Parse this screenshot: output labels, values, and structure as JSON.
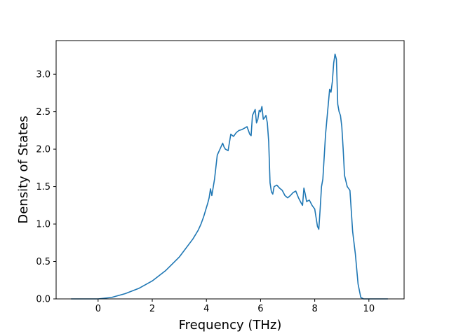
{
  "chart_data": {
    "type": "line",
    "title": "",
    "xlabel": "Frequency (THz)",
    "ylabel": "Density of States",
    "xlim": [
      -1.55,
      11.3
    ],
    "ylim": [
      0.0,
      3.45
    ],
    "xticks": [
      "0",
      "2",
      "4",
      "6",
      "8",
      "10"
    ],
    "xtick_values": [
      0,
      2,
      4,
      6,
      8,
      10
    ],
    "yticks": [
      "0.0",
      "0.5",
      "1.0",
      "1.5",
      "2.0",
      "2.5",
      "3.0"
    ],
    "ytick_values": [
      0.0,
      0.5,
      1.0,
      1.5,
      2.0,
      2.5,
      3.0
    ],
    "grid": false,
    "legend": "none",
    "series": [
      {
        "color": "#1f77b4",
        "x": [
          -1.0,
          -0.5,
          0.0,
          0.5,
          1.0,
          1.5,
          2.0,
          2.5,
          3.0,
          3.5,
          3.7,
          3.8,
          3.9,
          4.0,
          4.05,
          4.1,
          4.15,
          4.2,
          4.3,
          4.4,
          4.5,
          4.6,
          4.65,
          4.7,
          4.8,
          4.9,
          5.0,
          5.1,
          5.2,
          5.3,
          5.4,
          5.5,
          5.6,
          5.65,
          5.7,
          5.8,
          5.85,
          5.9,
          5.95,
          6.0,
          6.05,
          6.1,
          6.15,
          6.2,
          6.25,
          6.3,
          6.35,
          6.4,
          6.45,
          6.5,
          6.6,
          6.7,
          6.8,
          6.9,
          7.0,
          7.1,
          7.2,
          7.3,
          7.4,
          7.5,
          7.55,
          7.6,
          7.65,
          7.7,
          7.8,
          7.9,
          8.0,
          8.1,
          8.15,
          8.2,
          8.25,
          8.3,
          8.4,
          8.5,
          8.55,
          8.6,
          8.65,
          8.7,
          8.75,
          8.8,
          8.85,
          8.9,
          8.95,
          9.0,
          9.05,
          9.1,
          9.2,
          9.3,
          9.4,
          9.5,
          9.6,
          9.7,
          9.8,
          10.0,
          10.7
        ],
        "y": [
          0.0,
          0.0,
          0.0,
          0.02,
          0.07,
          0.14,
          0.24,
          0.38,
          0.56,
          0.8,
          0.92,
          1.0,
          1.1,
          1.22,
          1.28,
          1.35,
          1.47,
          1.38,
          1.6,
          1.92,
          2.0,
          2.08,
          2.03,
          2.0,
          1.98,
          2.2,
          2.17,
          2.22,
          2.25,
          2.26,
          2.28,
          2.3,
          2.2,
          2.18,
          2.45,
          2.53,
          2.35,
          2.4,
          2.52,
          2.5,
          2.57,
          2.4,
          2.42,
          2.45,
          2.35,
          2.1,
          1.55,
          1.43,
          1.4,
          1.5,
          1.52,
          1.48,
          1.45,
          1.38,
          1.35,
          1.38,
          1.42,
          1.44,
          1.35,
          1.28,
          1.25,
          1.48,
          1.4,
          1.3,
          1.32,
          1.25,
          1.2,
          0.97,
          0.93,
          1.2,
          1.5,
          1.6,
          2.2,
          2.6,
          2.8,
          2.76,
          2.9,
          3.15,
          3.27,
          3.2,
          2.6,
          2.5,
          2.45,
          2.3,
          2.0,
          1.65,
          1.5,
          1.45,
          0.9,
          0.6,
          0.2,
          0.02,
          0.0,
          0.0,
          0.0
        ]
      }
    ]
  }
}
